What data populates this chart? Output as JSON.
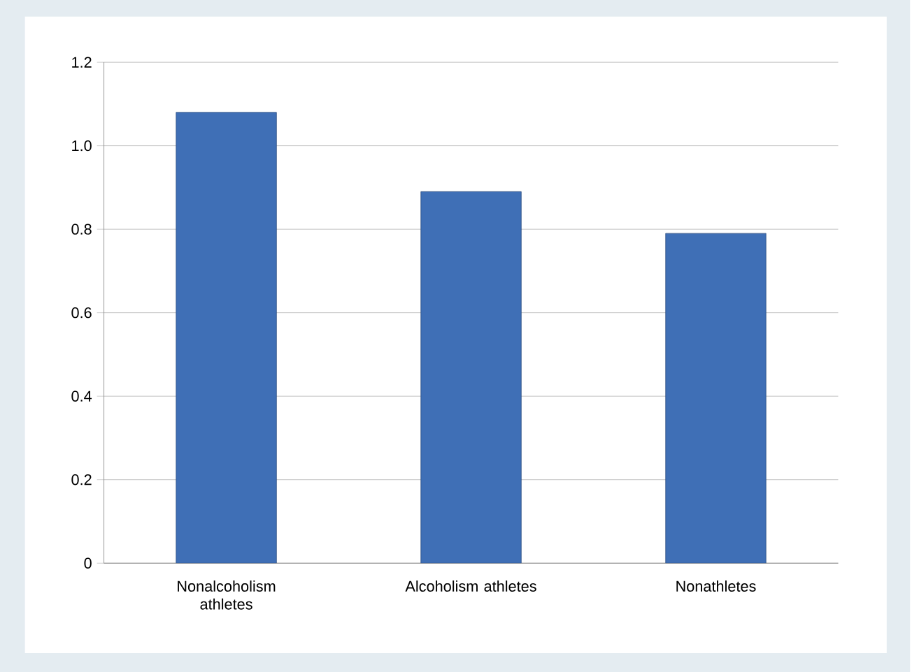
{
  "chart_data": {
    "type": "bar",
    "categories": [
      "Nonalcoholism athletes",
      "Alcoholism athletes",
      "Nonathletes"
    ],
    "values": [
      1.08,
      0.89,
      0.79
    ],
    "color": "#3f6fb6",
    "ylim": [
      0,
      1.2
    ],
    "yticks": [
      0,
      0.2,
      0.4,
      0.6,
      0.8,
      {
        "value": 1,
        "label": "1.0"
      },
      1.2
    ],
    "grid": "y"
  }
}
